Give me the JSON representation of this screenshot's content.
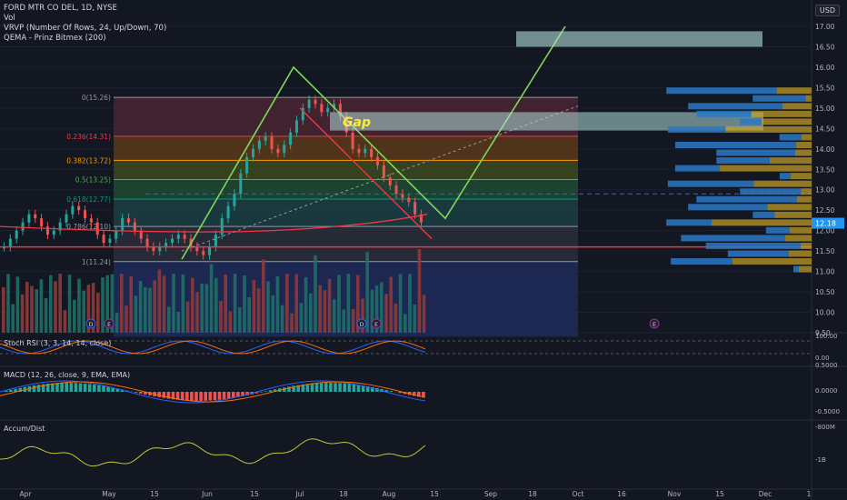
{
  "legend": {
    "title": "FORD MTR CO DEL, 1D, NYSE",
    "vol": "Vol",
    "vrvp": "VRVP (Number Of Rows, 24, Up/Down, 70)",
    "qema": "QEMA - Prinz Bitmex (200)"
  },
  "currency_button": "USD",
  "price_axis": {
    "ticks": [
      "17.00",
      "16.50",
      "16.00",
      "15.50",
      "15.00",
      "14.50",
      "14.00",
      "13.50",
      "13.00",
      "12.50",
      "12.00",
      "11.50",
      "11.00",
      "10.50",
      "10.00",
      "9.50"
    ],
    "current_price": "12.18",
    "current_price_color": "#2196f3"
  },
  "time_axis": [
    "Apr",
    "May",
    "15",
    "Jun",
    "15",
    "Jul",
    "18",
    "Aug",
    "15",
    "Sep",
    "18",
    "Oct",
    "16",
    "Nov",
    "15",
    "Dec",
    "1"
  ],
  "fib_levels": [
    {
      "label": "0(15.26)",
      "color": "#9598a1",
      "band": "#4a2632"
    },
    {
      "label": "0.236(14.31)",
      "color": "#f23645",
      "band": "#5a3a1a"
    },
    {
      "label": "0.382(13.72)",
      "color": "#ff9800",
      "band": "#3d4a1e"
    },
    {
      "label": "0.5(13.25)",
      "color": "#4caf50",
      "band": "#1f4a32"
    },
    {
      "label": "0.618(12.77)",
      "color": "#089981",
      "band": "#1c3f44"
    },
    {
      "label": "0.786(12.10)",
      "color": "#9598a1",
      "band": "#2a2e39"
    },
    {
      "label": "1(11.24)",
      "color": "#9598a1",
      "band": "#1f2a5a"
    }
  ],
  "annotation_gap": "Gap",
  "event_markers": {
    "dividend": "D",
    "earnings": "E"
  },
  "stoch": {
    "label": "Stoch RSI (3, 3, 14, 14, close)",
    "ticks": [
      "100.00",
      "0.00"
    ]
  },
  "macd": {
    "label": "MACD (12, 26, close, 9, EMA, EMA)",
    "ticks": [
      "0.5000",
      "0.0000",
      "-0.5000"
    ]
  },
  "accum": {
    "label": "Accum/Dist",
    "ticks": [
      "-800M",
      "-1B"
    ]
  },
  "colors": {
    "up": "#26a69a",
    "down": "#ef5350",
    "pattern_green": "#7ed957",
    "red_line": "#f23645",
    "vrvp_blue": "#2a78c4",
    "vrvp_yellow": "#c9a227"
  }
}
